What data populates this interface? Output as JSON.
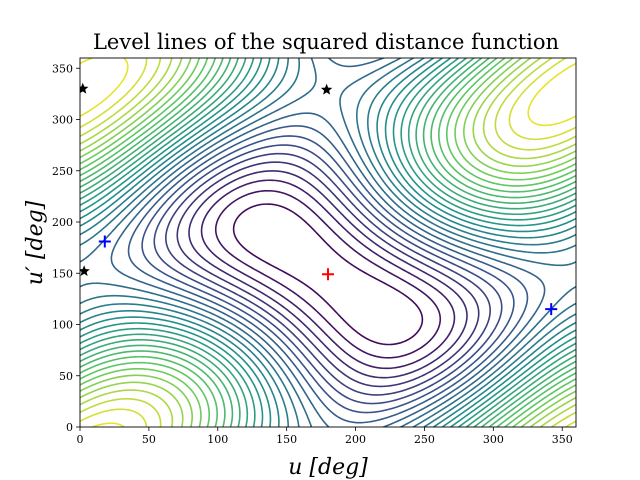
{
  "chart_data": {
    "type": "contour",
    "title": "Level lines of the squared distance function",
    "xlabel": "u [deg]",
    "ylabel": "u′ [deg]",
    "xlim": [
      0,
      360
    ],
    "ylim": [
      0,
      360
    ],
    "x_ticks": [
      0,
      50,
      100,
      150,
      200,
      250,
      300,
      350
    ],
    "y_ticks": [
      0,
      50,
      100,
      150,
      200,
      250,
      300,
      350
    ],
    "x_tick_labels": [
      "0",
      "50",
      "100",
      "150",
      "200",
      "250",
      "300",
      "350"
    ],
    "y_tick_labels": [
      "0",
      "50",
      "100",
      "150",
      "200",
      "250",
      "300",
      "350"
    ],
    "grid": false,
    "colormap": "viridis",
    "colormap_stops": [
      "#440154",
      "#3b528b",
      "#21918c",
      "#5ec962",
      "#fde725"
    ],
    "maximum_marker": {
      "symbol": "plus",
      "color": "#ff0000",
      "points": [
        [
          180,
          149
        ]
      ]
    },
    "minimum_markers": {
      "symbol": "plus",
      "color": "#0000ff",
      "points": [
        [
          18,
          181
        ],
        [
          342,
          115
        ]
      ]
    },
    "saddle_markers": {
      "symbol": "star",
      "color": "#000000",
      "points": [
        [
          2,
          330
        ],
        [
          179,
          329
        ],
        [
          3,
          152
        ]
      ]
    }
  }
}
